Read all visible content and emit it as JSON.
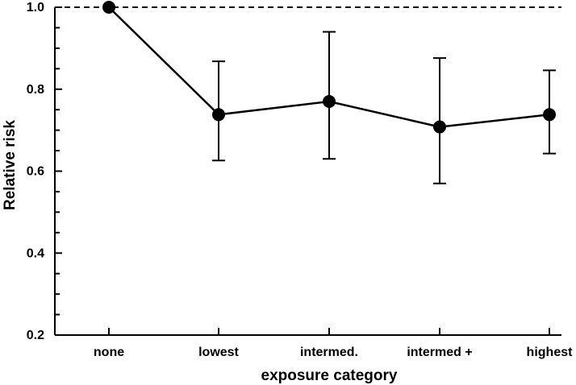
{
  "chart_data": {
    "type": "line",
    "title": "",
    "xlabel": "exposure category",
    "ylabel": "Relative risk",
    "categories": [
      "none",
      "lowest",
      "intermed.",
      "intermed +",
      "highest"
    ],
    "series": [
      {
        "values": [
          1.0,
          0.738,
          0.77,
          0.708,
          0.738
        ],
        "error_low": [
          null,
          0.626,
          0.63,
          0.57,
          0.643
        ],
        "error_high": [
          null,
          0.868,
          0.94,
          0.876,
          0.846
        ]
      }
    ],
    "ylim": [
      0.2,
      1.0
    ],
    "yticks": [
      "0.2",
      "0.4",
      "0.6",
      "0.8",
      "1.0"
    ],
    "minor_ytick_step": 0.05,
    "reference_line": {
      "y": 1.0,
      "style": "dashed"
    },
    "grid": false,
    "legend": "none",
    "colors": {
      "line": "#000000",
      "marker": "#000000",
      "axis": "#000000"
    }
  }
}
